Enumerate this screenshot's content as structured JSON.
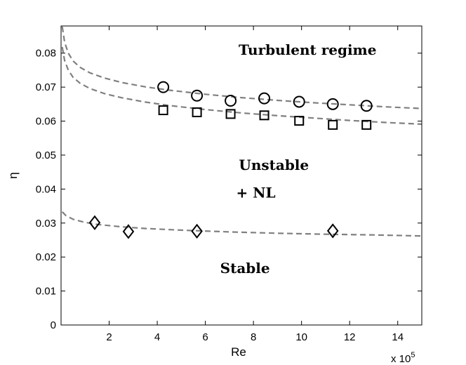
{
  "chart_data": {
    "type": "scatter",
    "xlabel": "Re",
    "ylabel": "η",
    "x_multiplier_base": "x 10",
    "x_multiplier_exp": "5",
    "xlim": [
      0,
      15
    ],
    "ylim": [
      0,
      0.088
    ],
    "xticks": [
      2,
      4,
      6,
      8,
      10,
      12,
      14
    ],
    "xtick_labels": [
      "2",
      "4",
      "6",
      "8",
      "10",
      "12",
      "14"
    ],
    "yticks": [
      0,
      0.01,
      0.02,
      0.03,
      0.04,
      0.05,
      0.06,
      0.07,
      0.08
    ],
    "ytick_labels": [
      "0",
      "0.01",
      "0.02",
      "0.03",
      "0.04",
      "0.05",
      "0.06",
      "0.07",
      "0.08"
    ],
    "grid": false,
    "series": [
      {
        "marker": "circle",
        "x": [
          4.25,
          5.65,
          7.05,
          8.45,
          9.9,
          11.3,
          12.7
        ],
        "y": [
          0.07,
          0.0675,
          0.066,
          0.0667,
          0.0657,
          0.065,
          0.0645
        ]
      },
      {
        "marker": "square",
        "x": [
          4.25,
          5.65,
          7.05,
          8.45,
          9.9,
          11.3,
          12.7
        ],
        "y": [
          0.0632,
          0.0626,
          0.0621,
          0.0617,
          0.0601,
          0.0589,
          0.0589
        ]
      },
      {
        "marker": "diamond",
        "x": [
          1.4,
          2.8,
          5.65,
          11.3
        ],
        "y": [
          0.0301,
          0.0275,
          0.0276,
          0.0277
        ]
      }
    ],
    "fit_curves": [
      {
        "style": "dashed",
        "color": "#808080",
        "x": [
          0.05,
          0.15,
          0.3,
          0.5,
          0.8,
          1.2,
          1.8,
          2.5,
          3.5,
          4.5,
          6,
          7.5,
          9,
          10.5,
          12,
          13.5,
          15
        ],
        "y": [
          0.0878,
          0.0832,
          0.08,
          0.0777,
          0.0758,
          0.0742,
          0.0727,
          0.0714,
          0.0701,
          0.0691,
          0.0679,
          0.0669,
          0.0661,
          0.0654,
          0.0648,
          0.0642,
          0.0637
        ]
      },
      {
        "style": "dashed",
        "color": "#808080",
        "x": [
          0.05,
          0.15,
          0.3,
          0.5,
          0.8,
          1.2,
          1.8,
          2.5,
          3.5,
          4.5,
          6,
          7.5,
          9,
          10.5,
          12,
          13.5,
          15
        ],
        "y": [
          0.0818,
          0.0778,
          0.075,
          0.0729,
          0.0711,
          0.0696,
          0.0681,
          0.0669,
          0.0656,
          0.0646,
          0.0634,
          0.0624,
          0.0616,
          0.0609,
          0.0602,
          0.0596,
          0.0591
        ]
      },
      {
        "style": "dashed",
        "color": "#808080",
        "x": [
          0.05,
          0.2,
          0.5,
          1,
          1.5,
          2.5,
          3.5,
          5,
          7,
          9,
          11,
          13,
          15
        ],
        "y": [
          0.0333,
          0.0322,
          0.0311,
          0.0302,
          0.0296,
          0.0289,
          0.0284,
          0.0279,
          0.0274,
          0.027,
          0.0267,
          0.0265,
          0.0262
        ]
      }
    ],
    "annotations": [
      {
        "text": "Turbulent regime",
        "x": 10.25,
        "y": 0.0795
      },
      {
        "text": "Unstable",
        "x": 8.85,
        "y": 0.0457
      },
      {
        "text": "+ NL",
        "x": 8.1,
        "y": 0.0375
      },
      {
        "text": "Stable",
        "x": 7.65,
        "y": 0.0153
      }
    ]
  }
}
